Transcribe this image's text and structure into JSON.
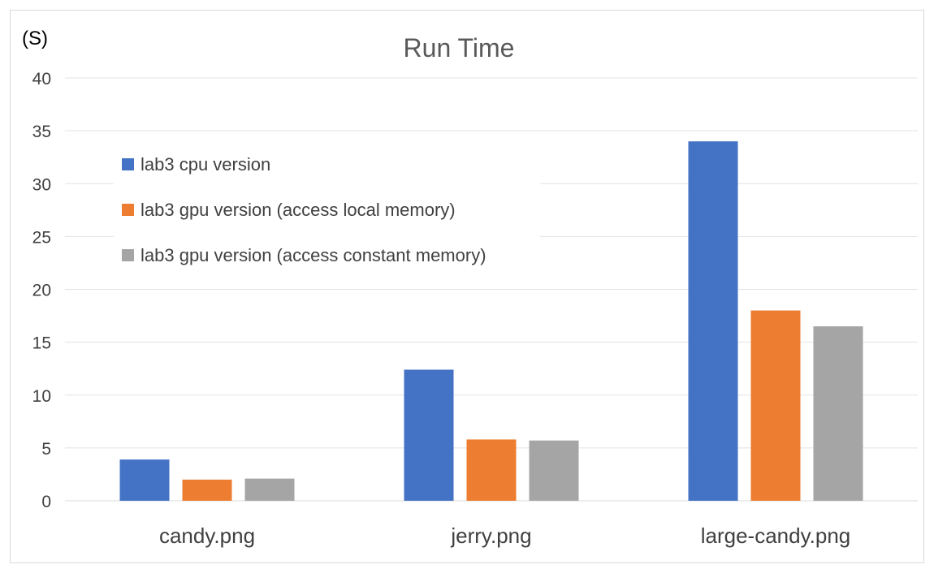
{
  "chart_data": {
    "type": "bar",
    "title": "Run Time",
    "ylabel": "(S)",
    "xlabel": "",
    "categories": [
      "candy.png",
      "jerry.png",
      "large-candy.png"
    ],
    "yticks": [
      "0",
      "5",
      "10",
      "15",
      "20",
      "25",
      "30",
      "35",
      "40"
    ],
    "ylim": [
      0,
      40
    ],
    "grid": true,
    "legend_position": "top-left",
    "series": [
      {
        "name": "lab3 cpu version",
        "color": "#4472C4",
        "values": [
          3.9,
          12.4,
          34.0
        ]
      },
      {
        "name": "lab3 gpu version (access local memory)",
        "color": "#ED7D31",
        "values": [
          2.0,
          5.8,
          18.0
        ]
      },
      {
        "name": "lab3 gpu version (access constant memory)",
        "color": "#A5A5A5",
        "values": [
          2.1,
          5.7,
          16.5
        ]
      }
    ]
  }
}
